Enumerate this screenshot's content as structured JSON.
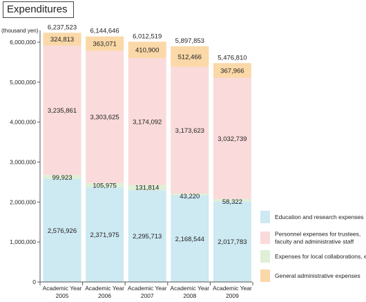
{
  "chart_data": {
    "type": "bar",
    "stacked": true,
    "title": "Expenditures",
    "unit_label": "(thousand yen)",
    "ylim": [
      0,
      6200000
    ],
    "y_ticks": [
      {
        "value": 0,
        "label": "0"
      },
      {
        "value": 1000000,
        "label": "1,000,000"
      },
      {
        "value": 2000000,
        "label": "2,000,000"
      },
      {
        "value": 3000000,
        "label": "3,000,000"
      },
      {
        "value": 4000000,
        "label": "4,000,000"
      },
      {
        "value": 5000000,
        "label": "5,000,000"
      },
      {
        "value": 6000000,
        "label": "6,000,000"
      }
    ],
    "categories": [
      [
        "Academic Year",
        "2005"
      ],
      [
        "Academic Year",
        "2006"
      ],
      [
        "Academic Year",
        "2007"
      ],
      [
        "Academic Year",
        "2008"
      ],
      [
        "Academic Year",
        "2009"
      ]
    ],
    "series": [
      {
        "name": "Education and research expenses",
        "color": "#cde9f2",
        "values": [
          2576926,
          2371975,
          2295713,
          2168544,
          2017783
        ],
        "labels": [
          "2,576,926",
          "2,371,975",
          "2,295,713",
          "2,168,544",
          "2,017,783"
        ]
      },
      {
        "name": "Expenses for local collaborations, etc.",
        "color": "#dff0d6",
        "values": [
          99923,
          105975,
          131814,
          43220,
          58322
        ],
        "labels": [
          "99,923",
          "105,975",
          "131,814",
          "43,220",
          "58,322"
        ]
      },
      {
        "name": "Personnel expenses for trustees, faculty and administrative staff",
        "color": "#fadada",
        "values": [
          3235861,
          3303625,
          3174092,
          3173623,
          3032739
        ],
        "labels": [
          "3,235,861",
          "3,303,625",
          "3,174,092",
          "3,173,623",
          "3,032,739"
        ]
      },
      {
        "name": "General administrative expenses",
        "color": "#fad8a8",
        "values": [
          324813,
          363071,
          410900,
          512466,
          367966
        ],
        "labels": [
          "324,813",
          "363,071",
          "410,900",
          "512,466",
          "367,966"
        ]
      }
    ],
    "totals": [
      6237523,
      6144646,
      6012519,
      5897853,
      5476810
    ],
    "total_labels": [
      "6,237,523",
      "6,144,646",
      "6,012,519",
      "5,897,853",
      "5,476,810"
    ],
    "legend": {
      "position": "right",
      "items": [
        {
          "lines": [
            "Education and research expenses"
          ],
          "color": "#cde9f2"
        },
        {
          "lines": [
            "Personnel expenses for trustees,",
            "faculty and administrative staff"
          ],
          "color": "#fadada"
        },
        {
          "lines": [
            "Expenses for local collaborations, etc."
          ],
          "color": "#dff0d6"
        },
        {
          "lines": [
            "General administrative expenses"
          ],
          "color": "#fad8a8"
        }
      ]
    },
    "grid": false
  }
}
